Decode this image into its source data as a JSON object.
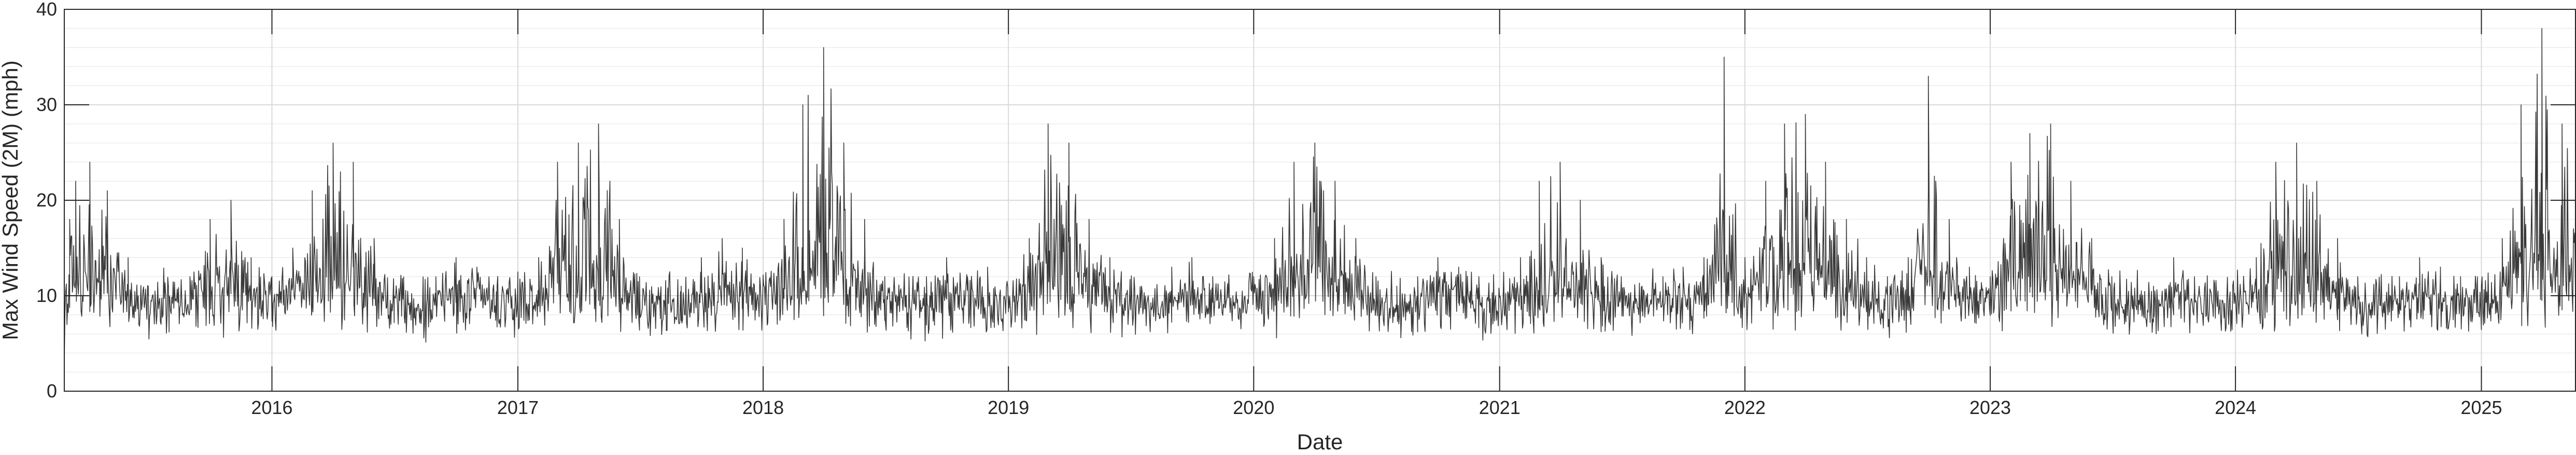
{
  "chart_data": {
    "type": "line",
    "xlabel": "Date",
    "ylabel": "Max Wind Speed (2M) (mph)",
    "ylim": [
      0,
      40
    ],
    "yticks": [
      0,
      10,
      20,
      30,
      40
    ],
    "xlim": [
      "2015-02-26",
      "2025-05-21"
    ],
    "xticks": [
      {
        "date": "2016-01-01",
        "label": "2016"
      },
      {
        "date": "2017-01-01",
        "label": "2017"
      },
      {
        "date": "2018-01-01",
        "label": "2018"
      },
      {
        "date": "2019-01-01",
        "label": "2019"
      },
      {
        "date": "2020-01-01",
        "label": "2020"
      },
      {
        "date": "2021-01-01",
        "label": "2021"
      },
      {
        "date": "2022-01-01",
        "label": "2022"
      },
      {
        "date": "2023-01-01",
        "label": "2023"
      },
      {
        "date": "2024-01-01",
        "label": "2024"
      },
      {
        "date": "2025-01-01",
        "label": "2025"
      }
    ],
    "grid": true,
    "minor_grid": true,
    "line_color": "#3a3a3a",
    "series": [
      {
        "name": "",
        "x": [
          "2015-02-26",
          "2015-03-06",
          "2015-03-15",
          "2015-04-05",
          "2015-05-01",
          "2015-06-01",
          "2015-07-01",
          "2015-08-01",
          "2015-09-01",
          "2015-10-01",
          "2015-11-01",
          "2015-12-01",
          "2016-01-01",
          "2016-02-01",
          "2016-03-01",
          "2016-04-01",
          "2016-05-01",
          "2016-06-01",
          "2016-07-01",
          "2016-08-01",
          "2016-09-01",
          "2016-10-01",
          "2016-11-01",
          "2016-12-01",
          "2017-01-01",
          "2017-02-01",
          "2017-03-01",
          "2017-04-01",
          "2017-05-01",
          "2017-06-01",
          "2017-07-01",
          "2017-08-01",
          "2017-09-01",
          "2017-10-01",
          "2017-11-01",
          "2017-12-01",
          "2018-01-01",
          "2018-02-01",
          "2018-03-01",
          "2018-04-01",
          "2018-05-01",
          "2018-06-01",
          "2018-07-01",
          "2018-08-01",
          "2018-09-01",
          "2018-10-01",
          "2018-11-01",
          "2018-12-01",
          "2019-01-01",
          "2019-02-01",
          "2019-03-01",
          "2019-04-01",
          "2019-05-01",
          "2019-06-01",
          "2019-07-01",
          "2019-08-01",
          "2019-09-01",
          "2019-10-01",
          "2019-11-01",
          "2019-12-01",
          "2020-01-01",
          "2020-02-01",
          "2020-03-01",
          "2020-04-01",
          "2020-05-01",
          "2020-06-01",
          "2020-07-01",
          "2020-08-01",
          "2020-09-01",
          "2020-10-01",
          "2020-11-01",
          "2020-12-01",
          "2021-01-01",
          "2021-02-01",
          "2021-03-01",
          "2021-04-01",
          "2021-05-01",
          "2021-06-01",
          "2021-07-01",
          "2021-08-01",
          "2021-09-01",
          "2021-10-01",
          "2021-11-01",
          "2021-12-01",
          "2022-01-01",
          "2022-02-01",
          "2022-03-01",
          "2022-04-01",
          "2022-05-01",
          "2022-06-01",
          "2022-07-01",
          "2022-08-01",
          "2022-09-01",
          "2022-10-01",
          "2022-11-01",
          "2022-12-01",
          "2023-01-01",
          "2023-02-01",
          "2023-03-01",
          "2023-04-01",
          "2023-05-01",
          "2023-06-01",
          "2023-07-01",
          "2023-08-01",
          "2023-09-01",
          "2023-10-01",
          "2023-11-01",
          "2023-12-01",
          "2024-01-01",
          "2024-02-01",
          "2024-03-01",
          "2024-04-01",
          "2024-05-01",
          "2024-06-01",
          "2024-07-01",
          "2024-08-01",
          "2024-09-01",
          "2024-10-01",
          "2024-11-01",
          "2024-12-01",
          "2025-01-01",
          "2025-02-01",
          "2025-03-01",
          "2025-04-01",
          "2025-05-01",
          "2025-05-21"
        ],
        "y": [
          3,
          18,
          22,
          24,
          21,
          14,
          11,
          10,
          12,
          18,
          20,
          14,
          12,
          15,
          21,
          26,
          24,
          16,
          10,
          8,
          12,
          14,
          13,
          11,
          10,
          14,
          24,
          26,
          28,
          18,
          12,
          10,
          11,
          14,
          16,
          15,
          12,
          18,
          30,
          36,
          26,
          18,
          12,
          10,
          12,
          14,
          12,
          13,
          10,
          16,
          28,
          26,
          18,
          14,
          10,
          9,
          13,
          14,
          12,
          10,
          12,
          16,
          24,
          26,
          22,
          16,
          12,
          11,
          12,
          14,
          13,
          12,
          10,
          14,
          22,
          24,
          20,
          14,
          12,
          11,
          12,
          13,
          14,
          35,
          14,
          22,
          28,
          29,
          24,
          18,
          14,
          12,
          14,
          33,
          18,
          13,
          12,
          24,
          27,
          28,
          22,
          16,
          12,
          10,
          11,
          14,
          12,
          11,
          10,
          14,
          24,
          26,
          22,
          16,
          12,
          10,
          12,
          14,
          13,
          12,
          11,
          16,
          30,
          38,
          28,
          22
        ]
      }
    ]
  }
}
